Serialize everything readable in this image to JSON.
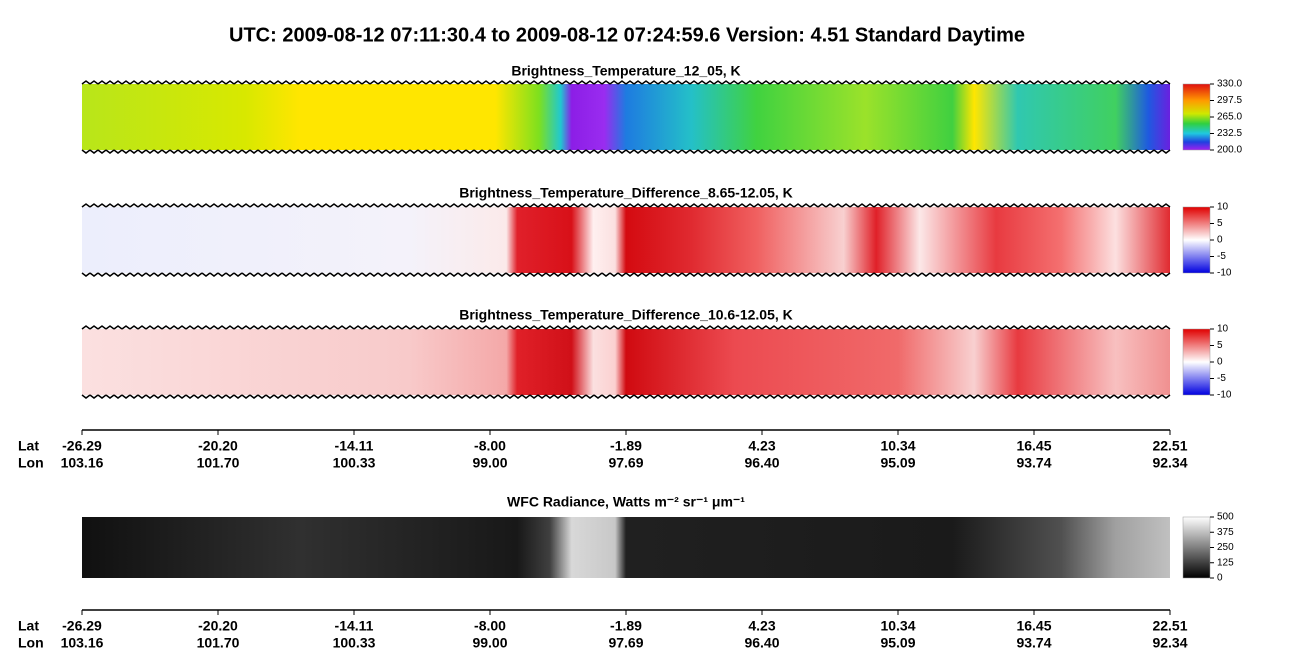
{
  "title": "UTC:  2009-08-12   07:11:30.4  to  2009-08-12   07:24:59.6    Version: 4.51  Standard Daytime",
  "panels": [
    {
      "title": "Brightness_Temperature_12_05, K",
      "colorbar": [
        "330.0",
        "297.5",
        "265.0",
        "232.5",
        "200.0"
      ]
    },
    {
      "title": "Brightness_Temperature_Difference_8.65-12.05, K",
      "colorbar": [
        "10",
        "5",
        "0",
        "-5",
        "-10"
      ]
    },
    {
      "title": "Brightness_Temperature_Difference_10.6-12.05, K",
      "colorbar": [
        "10",
        "5",
        "0",
        "-5",
        "-10"
      ]
    },
    {
      "title": "WFC Radiance, Watts m⁻² sr⁻¹ μm⁻¹",
      "colorbar": [
        "500",
        "375",
        "250",
        "125",
        "0"
      ]
    }
  ],
  "axes": [
    {
      "rows": [
        {
          "label": "Lat",
          "values": [
            "-26.29",
            "-20.20",
            "-14.11",
            "-8.00",
            "-1.89",
            "4.23",
            "10.34",
            "16.45",
            "22.51"
          ]
        },
        {
          "label": "Lon",
          "values": [
            "103.16",
            "101.70",
            "100.33",
            "99.00",
            "97.69",
            "96.40",
            "95.09",
            "93.74",
            "92.34"
          ]
        }
      ]
    },
    {
      "rows": [
        {
          "label": "Lat",
          "values": [
            "-26.29",
            "-20.20",
            "-14.11",
            "-8.00",
            "-1.89",
            "4.23",
            "10.34",
            "16.45",
            "22.51"
          ]
        },
        {
          "label": "Lon",
          "values": [
            "103.16",
            "101.70",
            "100.33",
            "99.00",
            "97.69",
            "96.40",
            "95.09",
            "93.74",
            "92.34"
          ]
        }
      ]
    }
  ]
}
